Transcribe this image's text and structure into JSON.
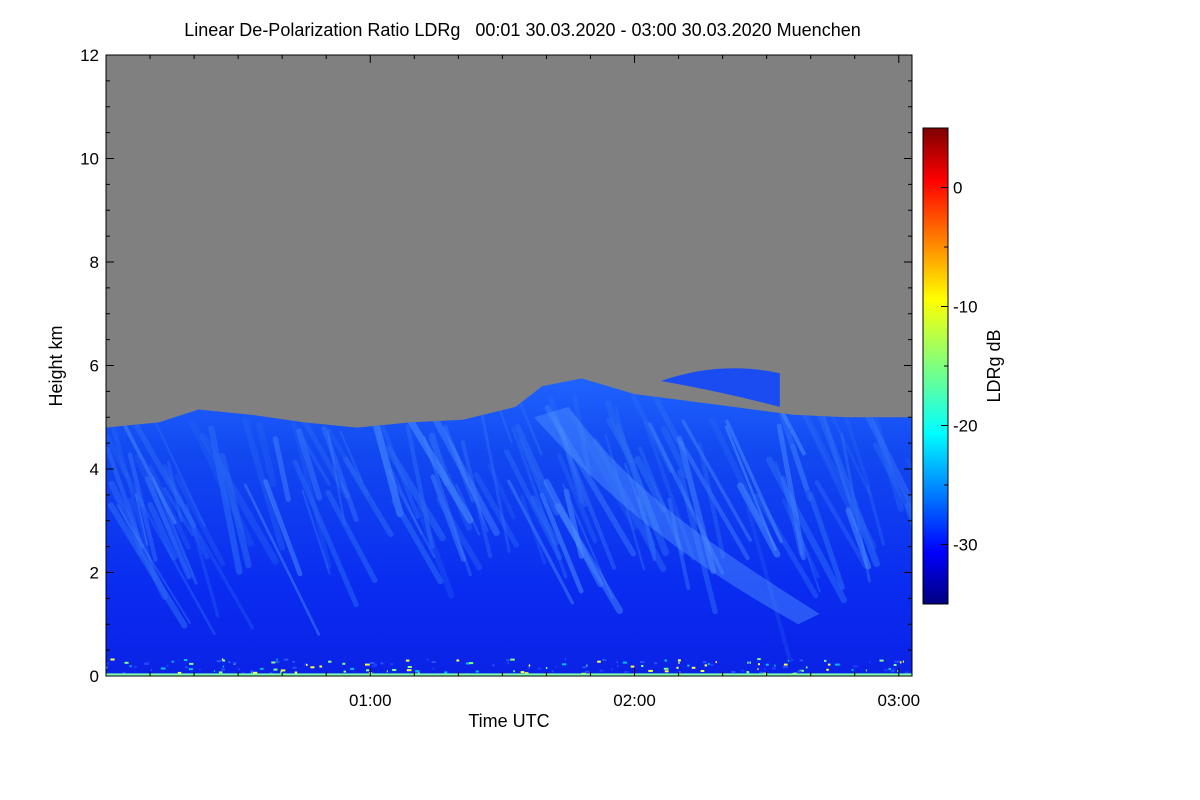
{
  "chart_data": {
    "type": "heatmap",
    "title": "Linear De-Polarization Ratio LDRg   00:01 30.03.2020 - 03:00 30.03.2020 Muenchen",
    "xlabel": "Time UTC",
    "ylabel": "Height km",
    "colorbar_label": "LDRg dB",
    "x_range_hours": [
      0.0,
      3.05
    ],
    "y_range_km": [
      0,
      12
    ],
    "colorbar_range_db": [
      -35,
      5
    ],
    "x_ticks": [
      {
        "label": "01:00",
        "value": 1.0
      },
      {
        "label": "02:00",
        "value": 2.0
      },
      {
        "label": "03:00",
        "value": 3.0
      }
    ],
    "y_ticks": [
      "0",
      "2",
      "4",
      "6",
      "8",
      "10",
      "12"
    ],
    "colorbar_ticks": [
      "0",
      "-10",
      "-20",
      "-30"
    ],
    "no_signal_color": "#808080",
    "cloud_top_km": [
      {
        "t": 0.0,
        "h": 4.8
      },
      {
        "t": 0.2,
        "h": 4.9
      },
      {
        "t": 0.35,
        "h": 5.15
      },
      {
        "t": 0.55,
        "h": 5.05
      },
      {
        "t": 0.75,
        "h": 4.9
      },
      {
        "t": 0.95,
        "h": 4.8
      },
      {
        "t": 1.15,
        "h": 4.9
      },
      {
        "t": 1.35,
        "h": 4.95
      },
      {
        "t": 1.55,
        "h": 5.2
      },
      {
        "t": 1.65,
        "h": 5.6
      },
      {
        "t": 1.8,
        "h": 5.75
      },
      {
        "t": 2.0,
        "h": 5.45
      },
      {
        "t": 2.3,
        "h": 5.25
      },
      {
        "t": 2.6,
        "h": 5.05
      },
      {
        "t": 2.8,
        "h": 5.0
      },
      {
        "t": 3.05,
        "h": 5.0
      }
    ],
    "upper_layer": {
      "t_start": 2.1,
      "t_end": 2.55,
      "h_bottom_km": 5.5,
      "h_top_km": 6.0
    },
    "ldr_summary_db": {
      "cloud_typical": -28,
      "fall_streaks": -24,
      "near_ground": -15
    }
  }
}
